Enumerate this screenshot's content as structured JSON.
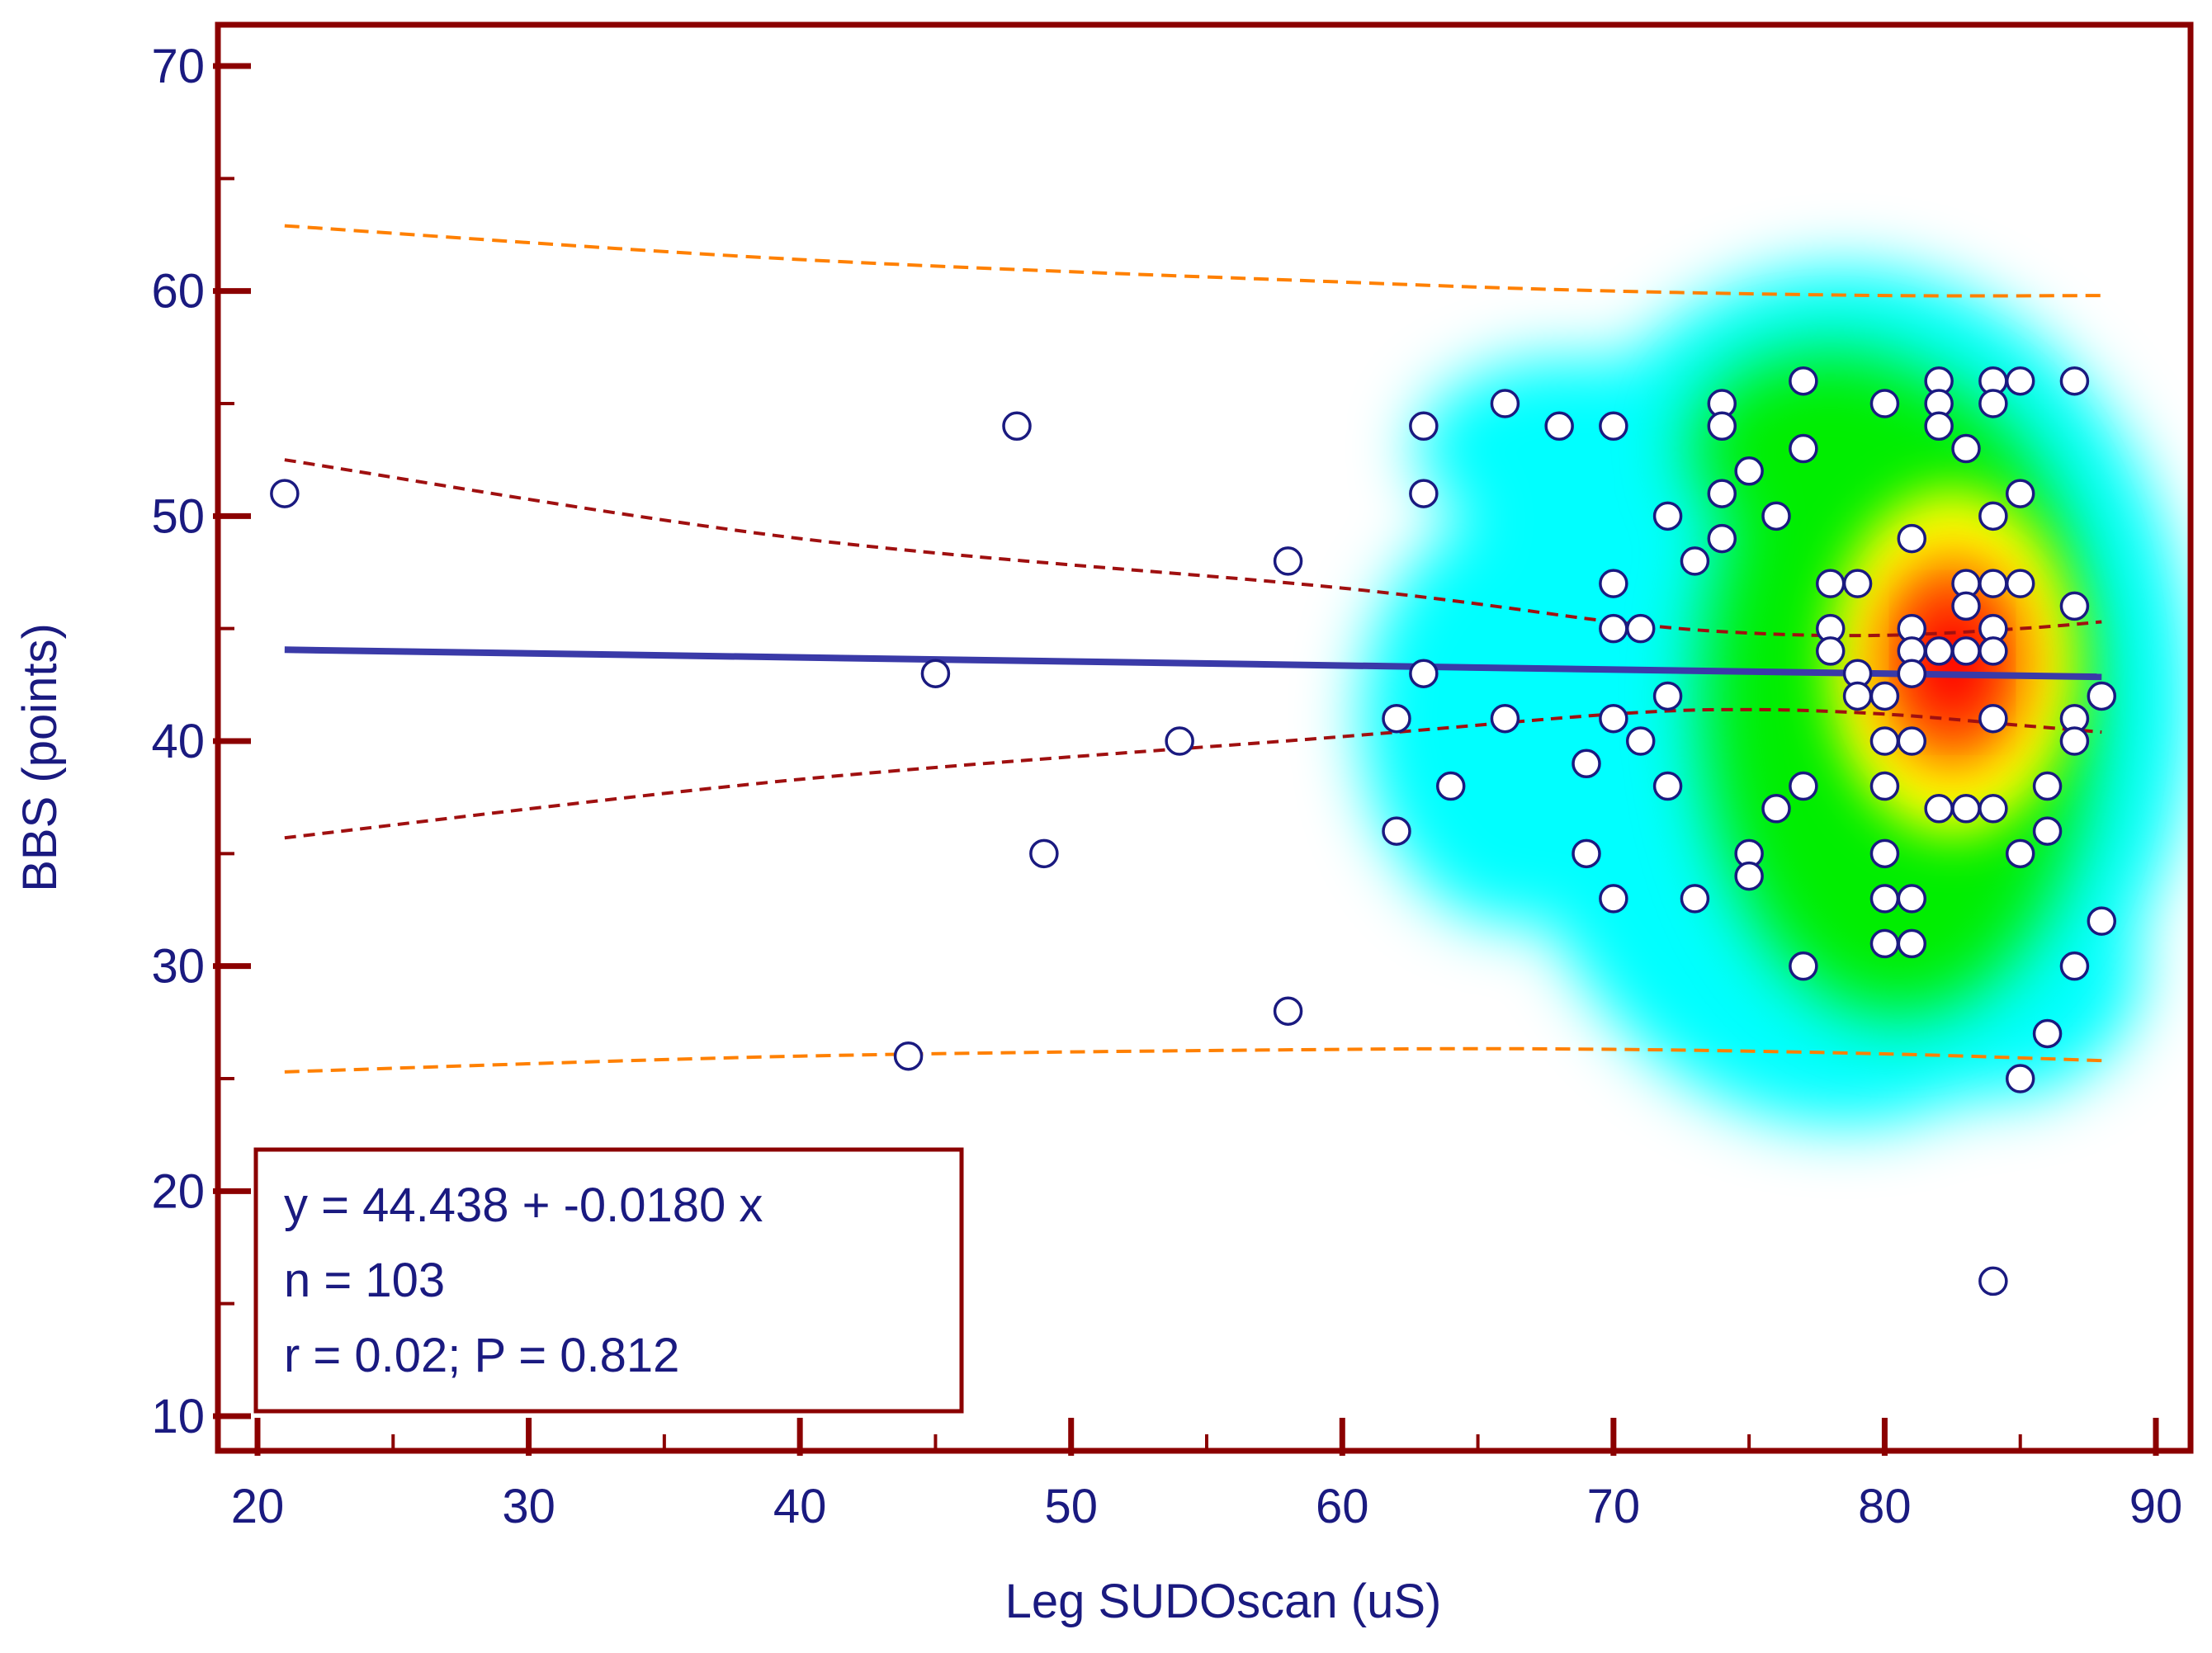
{
  "chart_data": {
    "type": "scatter",
    "xlabel": "Leg SUDOscan (uS)",
    "ylabel": "BBS (points)",
    "xlim": [
      19,
      91
    ],
    "ylim": [
      8,
      72
    ],
    "x_ticks": [
      20,
      30,
      40,
      50,
      60,
      70,
      80,
      90
    ],
    "y_ticks": [
      10,
      20,
      30,
      40,
      50,
      60,
      70
    ],
    "x_tick_labels": [
      "20",
      "30",
      "40",
      "50",
      "60",
      "70",
      "80",
      "90"
    ],
    "y_tick_labels": [
      "10",
      "20",
      "30",
      "40",
      "50",
      "60",
      "70"
    ],
    "grid": false,
    "points": [
      {
        "x": 21,
        "y": 51
      },
      {
        "x": 44,
        "y": 26
      },
      {
        "x": 45,
        "y": 43
      },
      {
        "x": 48,
        "y": 54
      },
      {
        "x": 49,
        "y": 35
      },
      {
        "x": 54,
        "y": 40
      },
      {
        "x": 58,
        "y": 48
      },
      {
        "x": 58,
        "y": 28
      },
      {
        "x": 62,
        "y": 41
      },
      {
        "x": 62,
        "y": 36
      },
      {
        "x": 63,
        "y": 54
      },
      {
        "x": 63,
        "y": 51
      },
      {
        "x": 63,
        "y": 43
      },
      {
        "x": 64,
        "y": 38
      },
      {
        "x": 66,
        "y": 55
      },
      {
        "x": 66,
        "y": 41
      },
      {
        "x": 68,
        "y": 54
      },
      {
        "x": 69,
        "y": 39
      },
      {
        "x": 69,
        "y": 35
      },
      {
        "x": 70,
        "y": 54
      },
      {
        "x": 70,
        "y": 47
      },
      {
        "x": 70,
        "y": 45
      },
      {
        "x": 70,
        "y": 41
      },
      {
        "x": 70,
        "y": 33
      },
      {
        "x": 71,
        "y": 45
      },
      {
        "x": 71,
        "y": 40
      },
      {
        "x": 72,
        "y": 50
      },
      {
        "x": 72,
        "y": 42
      },
      {
        "x": 72,
        "y": 38
      },
      {
        "x": 73,
        "y": 48
      },
      {
        "x": 73,
        "y": 33
      },
      {
        "x": 74,
        "y": 55
      },
      {
        "x": 74,
        "y": 54
      },
      {
        "x": 74,
        "y": 51
      },
      {
        "x": 74,
        "y": 49
      },
      {
        "x": 75,
        "y": 52
      },
      {
        "x": 75,
        "y": 35
      },
      {
        "x": 75,
        "y": 34
      },
      {
        "x": 76,
        "y": 50
      },
      {
        "x": 76,
        "y": 37
      },
      {
        "x": 77,
        "y": 56
      },
      {
        "x": 77,
        "y": 53
      },
      {
        "x": 77,
        "y": 38
      },
      {
        "x": 77,
        "y": 30
      },
      {
        "x": 78,
        "y": 47
      },
      {
        "x": 78,
        "y": 45
      },
      {
        "x": 78,
        "y": 44
      },
      {
        "x": 79,
        "y": 47
      },
      {
        "x": 79,
        "y": 43
      },
      {
        "x": 79,
        "y": 42
      },
      {
        "x": 80,
        "y": 55
      },
      {
        "x": 80,
        "y": 42
      },
      {
        "x": 80,
        "y": 40
      },
      {
        "x": 80,
        "y": 38
      },
      {
        "x": 80,
        "y": 35
      },
      {
        "x": 80,
        "y": 33
      },
      {
        "x": 80,
        "y": 31
      },
      {
        "x": 81,
        "y": 49
      },
      {
        "x": 81,
        "y": 45
      },
      {
        "x": 81,
        "y": 44
      },
      {
        "x": 81,
        "y": 43
      },
      {
        "x": 81,
        "y": 40
      },
      {
        "x": 81,
        "y": 33
      },
      {
        "x": 81,
        "y": 31
      },
      {
        "x": 82,
        "y": 56
      },
      {
        "x": 82,
        "y": 55
      },
      {
        "x": 82,
        "y": 54
      },
      {
        "x": 82,
        "y": 44
      },
      {
        "x": 82,
        "y": 37
      },
      {
        "x": 83,
        "y": 53
      },
      {
        "x": 83,
        "y": 47
      },
      {
        "x": 83,
        "y": 46
      },
      {
        "x": 83,
        "y": 44
      },
      {
        "x": 83,
        "y": 37
      },
      {
        "x": 84,
        "y": 56
      },
      {
        "x": 84,
        "y": 55
      },
      {
        "x": 84,
        "y": 50
      },
      {
        "x": 84,
        "y": 47
      },
      {
        "x": 84,
        "y": 45
      },
      {
        "x": 84,
        "y": 44
      },
      {
        "x": 84,
        "y": 41
      },
      {
        "x": 84,
        "y": 37
      },
      {
        "x": 84,
        "y": 16
      },
      {
        "x": 85,
        "y": 56
      },
      {
        "x": 85,
        "y": 51
      },
      {
        "x": 85,
        "y": 47
      },
      {
        "x": 85,
        "y": 35
      },
      {
        "x": 85,
        "y": 25
      },
      {
        "x": 86,
        "y": 38
      },
      {
        "x": 86,
        "y": 36
      },
      {
        "x": 86,
        "y": 27
      },
      {
        "x": 87,
        "y": 56
      },
      {
        "x": 87,
        "y": 46
      },
      {
        "x": 87,
        "y": 41
      },
      {
        "x": 87,
        "y": 40
      },
      {
        "x": 87,
        "y": 30
      },
      {
        "x": 88,
        "y": 42
      },
      {
        "x": 88,
        "y": 32
      }
    ],
    "regression": {
      "intercept": 44.438,
      "slope": -0.018,
      "x_range": [
        21,
        88
      ]
    },
    "confidence_band": {
      "upper": [
        [
          21,
          52.5
        ],
        [
          40,
          49.0
        ],
        [
          60,
          46.8
        ],
        [
          70,
          45.3
        ],
        [
          75,
          44.8
        ],
        [
          80,
          44.7
        ],
        [
          85,
          45.0
        ],
        [
          88,
          45.3
        ]
      ],
      "lower": [
        [
          21,
          35.7
        ],
        [
          40,
          38.3
        ],
        [
          60,
          40.2
        ],
        [
          70,
          41.2
        ],
        [
          75,
          41.4
        ],
        [
          80,
          41.2
        ],
        [
          85,
          40.7
        ],
        [
          88,
          40.4
        ]
      ]
    },
    "prediction_band": {
      "upper": [
        [
          21,
          62.9
        ],
        [
          40,
          61.4
        ],
        [
          60,
          60.4
        ],
        [
          70,
          60.0
        ],
        [
          80,
          59.8
        ],
        [
          88,
          59.8
        ]
      ],
      "lower": [
        [
          21,
          25.3
        ],
        [
          40,
          26.0
        ],
        [
          60,
          26.3
        ],
        [
          70,
          26.3
        ],
        [
          80,
          26.1
        ],
        [
          88,
          25.8
        ]
      ]
    },
    "density_overlay": {
      "colormap": [
        "#00ffff",
        "#00ee00",
        "#ffff00",
        "#ff6600",
        "#ff0000"
      ],
      "peak": {
        "x": 82.5,
        "y": 43.5
      }
    },
    "annotations": {
      "equation": "y = 44.438 + -0.0180 x",
      "n": "n = 103",
      "stats": "r = 0.02; P = 0.812",
      "placement": "bottom-left"
    },
    "colors": {
      "frame": "#8b0000",
      "text": "#1a1a80",
      "regression_line": "#3a3aa8",
      "confidence_band": "#a01010",
      "prediction_band": "#ff8000",
      "marker_edge": "#1a1a80",
      "marker_fill": "#ffffff"
    }
  }
}
